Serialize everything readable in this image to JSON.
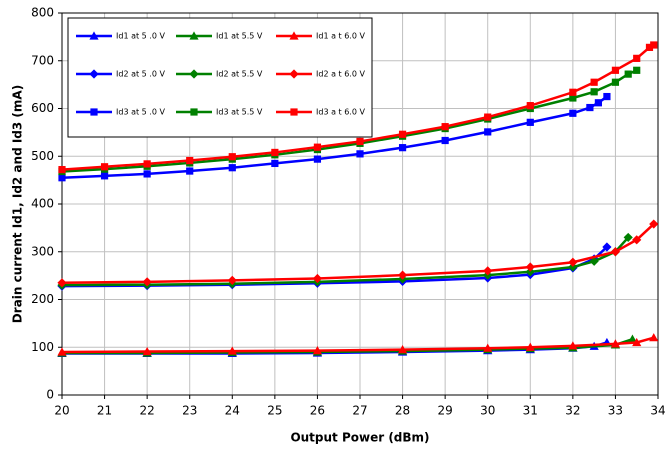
{
  "chart_data": {
    "type": "line",
    "x_label": "Output Power (dBm)",
    "y_label": "Drain current Id1, Id2 and Id3 (mA)",
    "xlim": [
      20,
      34
    ],
    "xticks": [
      20,
      21,
      22,
      23,
      24,
      25,
      26,
      27,
      28,
      29,
      30,
      31,
      32,
      33,
      34
    ],
    "ylim": [
      0,
      800
    ],
    "yticks": [
      0,
      100,
      200,
      300,
      400,
      500,
      600,
      700,
      800
    ],
    "grid": true,
    "legend": "upper-left",
    "series": [
      {
        "name": "Id1 at 5 .0 V",
        "color": "#0000ff",
        "marker": "triangle",
        "x": [
          20,
          22,
          24,
          26,
          28,
          30,
          31,
          32,
          32.5,
          32.8
        ],
        "values": [
          87,
          87,
          87,
          88,
          90,
          93,
          95,
          98,
          102,
          110
        ]
      },
      {
        "name": "Id1 at 5.5 V",
        "color": "#008000",
        "marker": "triangle",
        "x": [
          20,
          22,
          24,
          26,
          28,
          30,
          31,
          32,
          33,
          33.4
        ],
        "values": [
          88,
          88,
          89,
          90,
          92,
          95,
          97,
          99,
          105,
          117
        ]
      },
      {
        "name": "Id1 a t 6.0 V",
        "color": "#ff0000",
        "marker": "triangle",
        "x": [
          20,
          22,
          24,
          26,
          28,
          30,
          31,
          32,
          33,
          33.5,
          33.9
        ],
        "values": [
          90,
          91,
          92,
          93,
          95,
          98,
          100,
          103,
          107,
          110,
          120
        ]
      },
      {
        "name": "Id2 at 5 .0 V",
        "color": "#0000ff",
        "marker": "diamond",
        "x": [
          20,
          22,
          24,
          26,
          28,
          30,
          31,
          32,
          32.5,
          32.8
        ],
        "values": [
          228,
          229,
          231,
          234,
          238,
          245,
          252,
          266,
          285,
          310
        ]
      },
      {
        "name": "Id2 at 5.5 V",
        "color": "#008000",
        "marker": "diamond",
        "x": [
          20,
          22,
          24,
          26,
          28,
          30,
          31,
          32,
          32.5,
          33,
          33.3
        ],
        "values": [
          230,
          231,
          233,
          237,
          243,
          251,
          258,
          268,
          280,
          300,
          330
        ]
      },
      {
        "name": "Id2 a t 6.0 V",
        "color": "#ff0000",
        "marker": "diamond",
        "x": [
          20,
          22,
          24,
          26,
          28,
          30,
          31,
          32,
          33,
          33.5,
          33.9
        ],
        "values": [
          235,
          237,
          240,
          244,
          251,
          260,
          268,
          278,
          300,
          325,
          358
        ]
      },
      {
        "name": "Id3 at 5 .0 V",
        "color": "#0000ff",
        "marker": "square",
        "x": [
          20,
          21,
          22,
          23,
          24,
          25,
          26,
          27,
          28,
          29,
          30,
          31,
          32,
          32.4,
          32.6,
          32.8
        ],
        "values": [
          455,
          459,
          463,
          469,
          476,
          485,
          494,
          505,
          518,
          533,
          551,
          571,
          590,
          602,
          612,
          625
        ]
      },
      {
        "name": "Id3 at 5.5 V",
        "color": "#008000",
        "marker": "square",
        "x": [
          20,
          21,
          22,
          23,
          24,
          25,
          26,
          27,
          28,
          29,
          30,
          31,
          32,
          32.5,
          33,
          33.3,
          33.5
        ],
        "values": [
          468,
          473,
          479,
          486,
          494,
          503,
          514,
          527,
          542,
          558,
          578,
          600,
          622,
          635,
          655,
          672,
          680
        ]
      },
      {
        "name": "Id3 a t 6.0 V",
        "color": "#ff0000",
        "marker": "square",
        "x": [
          20,
          21,
          22,
          23,
          24,
          25,
          26,
          27,
          28,
          29,
          30,
          31,
          32,
          32.5,
          33,
          33.5,
          33.8,
          33.9
        ],
        "values": [
          472,
          478,
          484,
          491,
          499,
          508,
          519,
          531,
          546,
          562,
          582,
          606,
          634,
          655,
          680,
          705,
          728,
          733
        ]
      }
    ]
  }
}
